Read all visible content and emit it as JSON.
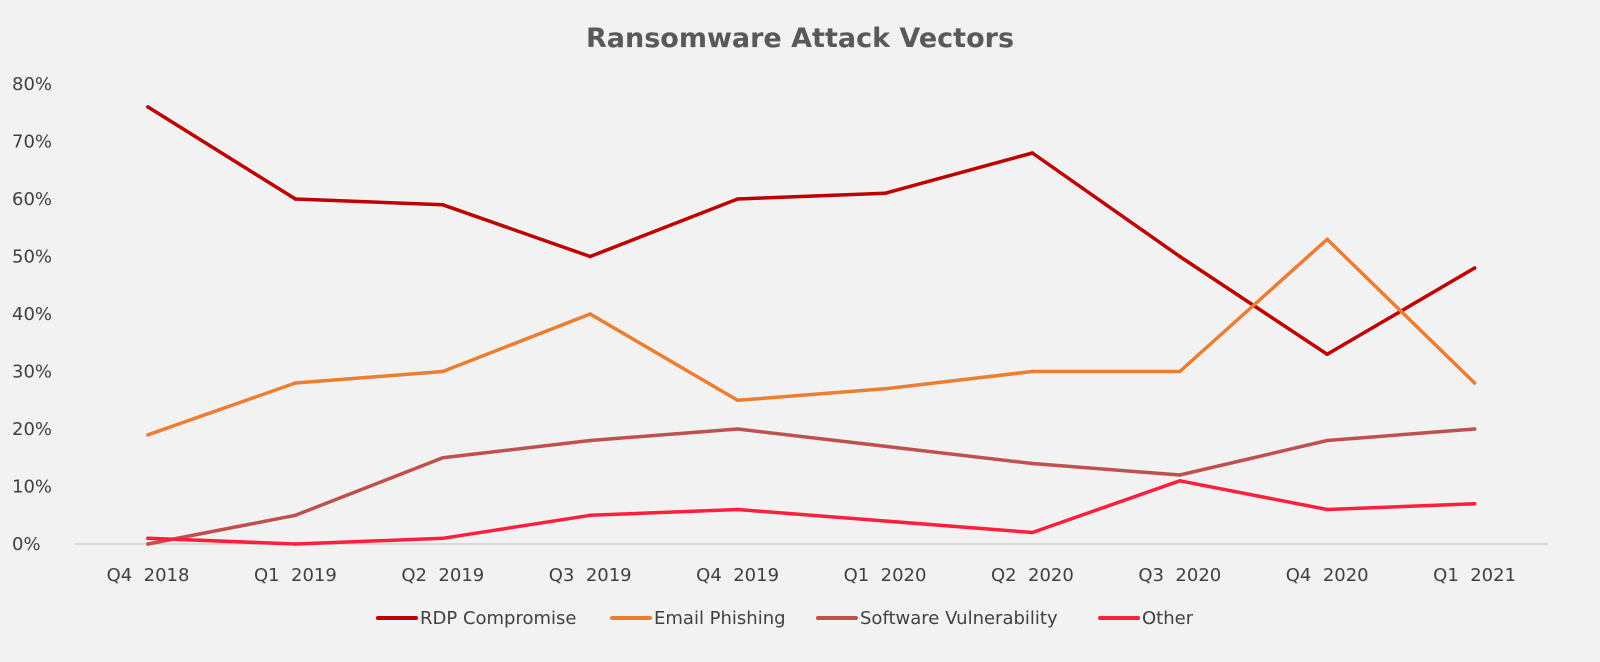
{
  "chart_data": {
    "type": "line",
    "title": "Ransomware Attack Vectors",
    "xlabel": "",
    "ylabel": "",
    "categories": [
      "Q4  2018",
      "Q1  2019",
      "Q2  2019",
      "Q3  2019",
      "Q4  2019",
      "Q1  2020",
      "Q2  2020",
      "Q3  2020",
      "Q4  2020",
      "Q1  2021"
    ],
    "ylim": [
      0,
      80
    ],
    "yticks": [
      0,
      10,
      20,
      30,
      40,
      50,
      60,
      70,
      80
    ],
    "ytick_labels": [
      "0%",
      "10%",
      "20%",
      "30%",
      "40%",
      "50%",
      "60%",
      "70%",
      "80%"
    ],
    "grid": false,
    "legend_position": "bottom",
    "series": [
      {
        "name": "RDP Compromise",
        "color": "#c00000",
        "values": [
          76,
          60,
          59,
          50,
          60,
          61,
          68,
          50,
          33,
          48
        ]
      },
      {
        "name": "Email Phishing",
        "color": "#ed7d31",
        "values": [
          19,
          28,
          30,
          40,
          25,
          27,
          30,
          30,
          53,
          28
        ]
      },
      {
        "name": "Software Vulnerability",
        "color": "#c0504d",
        "values": [
          0,
          5,
          15,
          18,
          20,
          17,
          14,
          12,
          18,
          20
        ]
      },
      {
        "name": "Other",
        "color": "#ff1f3d",
        "values": [
          1,
          0,
          1,
          5,
          6,
          4,
          2,
          11,
          6,
          7
        ]
      }
    ]
  }
}
